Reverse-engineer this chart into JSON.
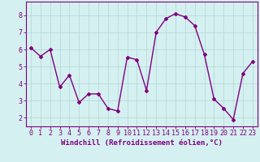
{
  "x": [
    0,
    1,
    2,
    3,
    4,
    5,
    6,
    7,
    8,
    9,
    10,
    11,
    12,
    13,
    14,
    15,
    16,
    17,
    18,
    19,
    20,
    21,
    22,
    23
  ],
  "y": [
    6.1,
    5.6,
    6.0,
    3.8,
    4.5,
    2.9,
    3.4,
    3.4,
    2.55,
    2.4,
    5.55,
    5.4,
    3.6,
    7.0,
    7.8,
    8.1,
    7.9,
    7.4,
    5.7,
    3.1,
    2.55,
    1.9,
    4.6,
    5.3
  ],
  "line_color": "#800080",
  "marker": "D",
  "marker_size": 2,
  "linewidth": 1.0,
  "background_color": "#d5f0f0",
  "grid_color": "#b8dada",
  "xlabel": "Windchill (Refroidissement éolien,°C)",
  "xlabel_color": "#800080",
  "ylim": [
    1.5,
    8.8
  ],
  "xlim": [
    -0.5,
    23.5
  ],
  "yticks": [
    2,
    3,
    4,
    5,
    6,
    7,
    8
  ],
  "xticks": [
    0,
    1,
    2,
    3,
    4,
    5,
    6,
    7,
    8,
    9,
    10,
    11,
    12,
    13,
    14,
    15,
    16,
    17,
    18,
    19,
    20,
    21,
    22,
    23
  ],
  "tick_color": "#800080",
  "spine_color": "#800080",
  "font_size_label": 6.5,
  "font_size_tick": 6.0
}
